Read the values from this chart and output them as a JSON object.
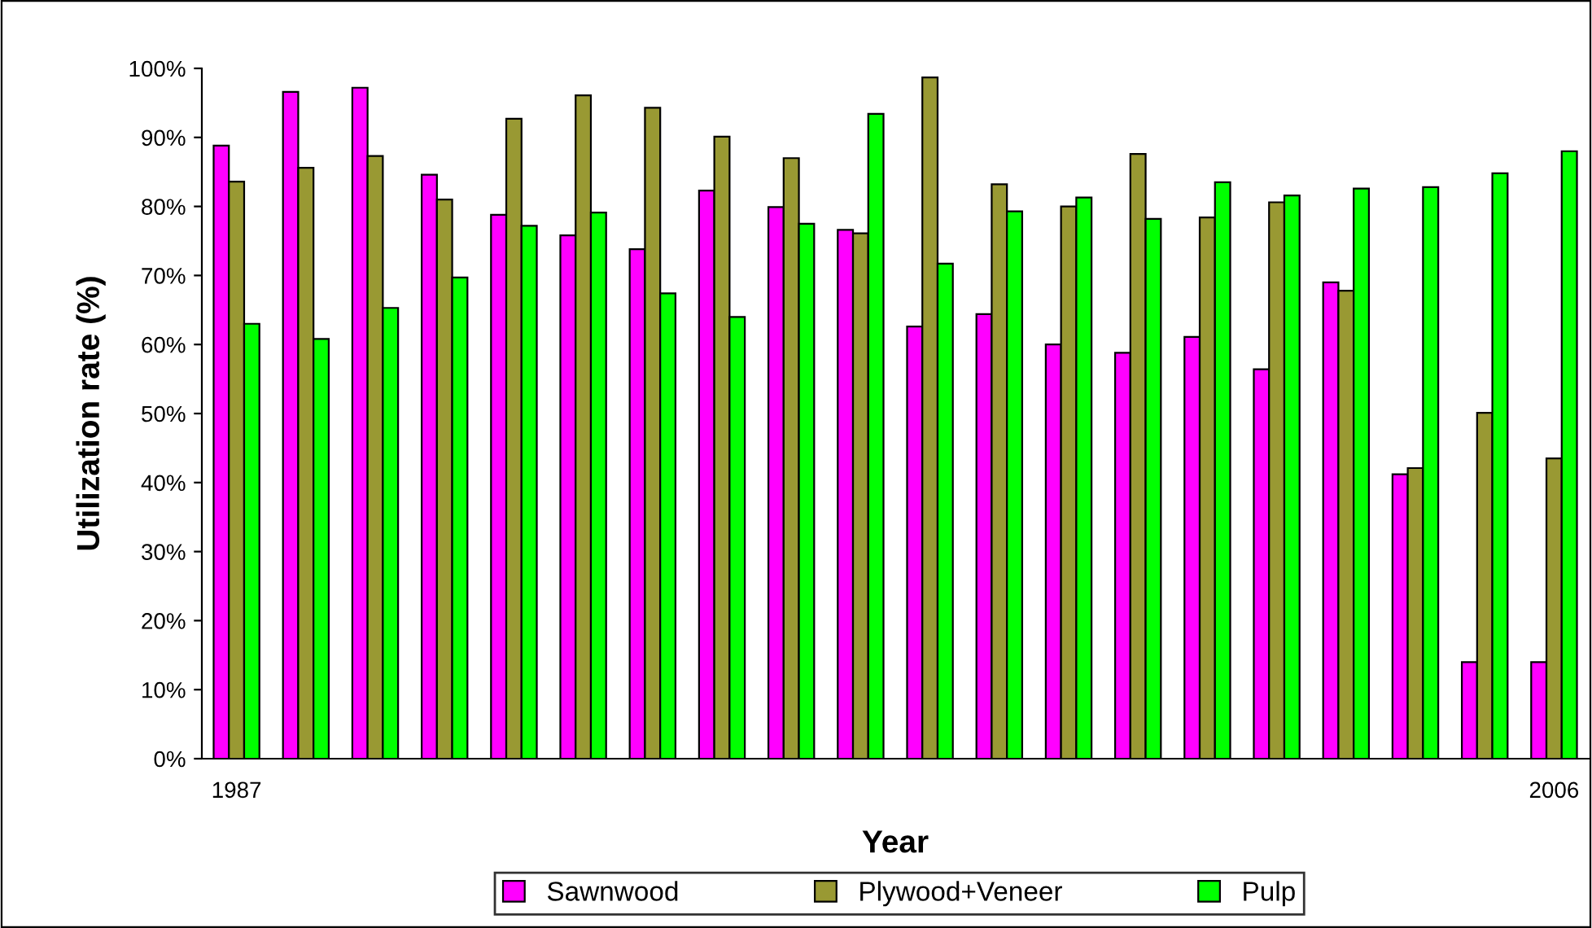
{
  "chart_data": {
    "type": "bar",
    "xlabel": "Year",
    "ylabel": "Utilization rate (%)",
    "categories": [
      "1987",
      null,
      null,
      null,
      null,
      null,
      null,
      null,
      null,
      null,
      null,
      null,
      null,
      null,
      null,
      null,
      null,
      null,
      null,
      "2006"
    ],
    "series": [
      {
        "name": "Sawnwood",
        "color": "#ff00ff",
        "values": [
          88.8,
          96.6,
          97.2,
          84.6,
          78.8,
          75.8,
          73.8,
          82.3,
          79.9,
          76.6,
          62.6,
          64.4,
          60.0,
          58.8,
          61.1,
          56.4,
          69.0,
          41.2,
          14.0,
          14.0
        ]
      },
      {
        "name": "Plywood+Veneer",
        "color": "#999933",
        "values": [
          83.6,
          85.6,
          87.3,
          81.0,
          92.7,
          96.1,
          94.3,
          90.1,
          87.0,
          76.1,
          98.7,
          83.2,
          80.0,
          87.6,
          78.4,
          80.6,
          67.8,
          42.1,
          50.1,
          43.5
        ]
      },
      {
        "name": "Pulp",
        "color": "#00ff00",
        "values": [
          63.0,
          60.8,
          65.3,
          69.7,
          77.2,
          79.1,
          67.4,
          64.0,
          77.5,
          93.4,
          71.7,
          79.3,
          81.3,
          78.2,
          83.5,
          81.6,
          82.6,
          82.8,
          84.8,
          88.0
        ]
      }
    ],
    "ylim": [
      0,
      100
    ],
    "yticks": [
      {
        "value": 0,
        "label": "0%"
      },
      {
        "value": 10,
        "label": "10%"
      },
      {
        "value": 20,
        "label": "20%"
      },
      {
        "value": 30,
        "label": "30%"
      },
      {
        "value": 40,
        "label": "40%"
      },
      {
        "value": 50,
        "label": "50%"
      },
      {
        "value": 60,
        "label": "60%"
      },
      {
        "value": 70,
        "label": "70%"
      },
      {
        "value": 80,
        "label": "80%"
      },
      {
        "value": 90,
        "label": "90%"
      },
      {
        "value": 100,
        "label": "100%"
      }
    ],
    "grid": false,
    "legend": "bottom"
  }
}
